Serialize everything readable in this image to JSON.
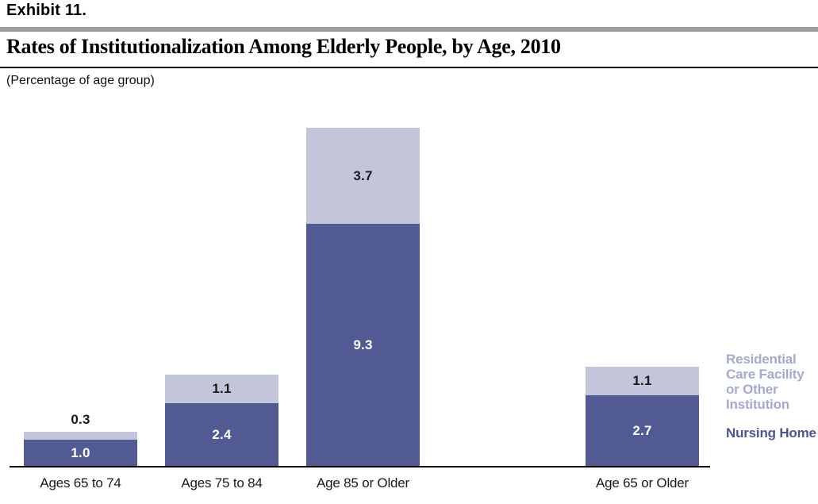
{
  "exhibit_label": "Exhibit 11.",
  "title": "Rates of Institutionalization Among Elderly People, by Age, 2010",
  "subtitle": "(Percentage of age group)",
  "colors": {
    "nursing_home_bar": "#515a93",
    "residential_bar": "#c3c6da",
    "legend_residential_text": "#a4a9cf",
    "legend_nursing_text": "#4d5695",
    "header_gray_bar": "#9e9e9e",
    "axis_line": "#000000"
  },
  "legend": {
    "residential_label": "Residential Care Facility or Other Institution",
    "nursing_label": "Nursing Home"
  },
  "chart_data": {
    "type": "bar",
    "stacked": true,
    "title": "Rates of Institutionalization Among Elderly People, by Age, 2010",
    "ylabel": "(Percentage of age group)",
    "categories": [
      "Ages 65 to 74",
      "Ages 75 to 84",
      "Age 85 or Older",
      "Age 65 or Older"
    ],
    "series": [
      {
        "name": "Nursing Home",
        "values": [
          1.0,
          2.4,
          9.3,
          2.7
        ]
      },
      {
        "name": "Residential Care Facility or Other Institution",
        "values": [
          0.3,
          1.1,
          3.7,
          1.1
        ]
      }
    ],
    "totals": [
      1.3,
      3.5,
      13.0,
      3.8
    ],
    "ylim": [
      0,
      13.4
    ],
    "grid": false,
    "legend_position": "right",
    "value_labels_shown": true
  }
}
